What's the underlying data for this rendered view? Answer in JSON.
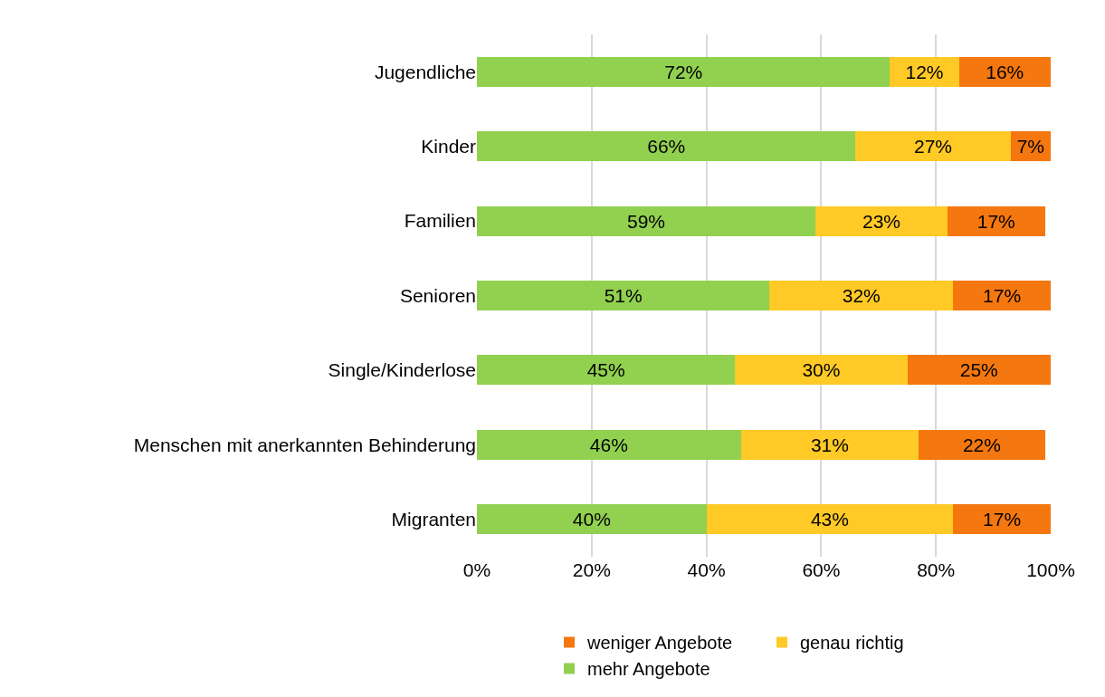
{
  "chart_data": {
    "type": "bar",
    "orientation": "horizontal",
    "stacked": true,
    "categories": [
      "Jugendliche",
      "Kinder",
      "Familien",
      "Senioren",
      "Single/Kinderlose",
      "Menschen mit anerkannten Behinderung",
      "Migranten"
    ],
    "series": [
      {
        "name": "mehr Angebote",
        "color": "#92d050",
        "values": [
          72,
          66,
          59,
          51,
          45,
          46,
          40
        ],
        "value_labels": [
          "72%",
          "66%",
          "59%",
          "51%",
          "45%",
          "46%",
          "40%"
        ]
      },
      {
        "name": "genau richtig",
        "color": "#ffc926",
        "values": [
          12,
          27,
          23,
          32,
          30,
          31,
          43
        ],
        "value_labels": [
          "12%",
          "27%",
          "23%",
          "32%",
          "30%",
          "31%",
          "43%"
        ]
      },
      {
        "name": "weniger Angebote",
        "color": "#f4770f",
        "values": [
          16,
          7,
          17,
          17,
          25,
          22,
          17
        ],
        "value_labels": [
          "16%",
          "7%",
          "17%",
          "17%",
          "25%",
          "22%",
          "17%"
        ]
      }
    ],
    "xlim": [
      0,
      100
    ],
    "xticks": [
      {
        "value": 0,
        "label": "0%"
      },
      {
        "value": 20,
        "label": "20%"
      },
      {
        "value": 40,
        "label": "40%"
      },
      {
        "value": 60,
        "label": "60%"
      },
      {
        "value": 80,
        "label": "80%"
      },
      {
        "value": 100,
        "label": "100%"
      }
    ],
    "grid": "x",
    "legend": "bottom"
  }
}
